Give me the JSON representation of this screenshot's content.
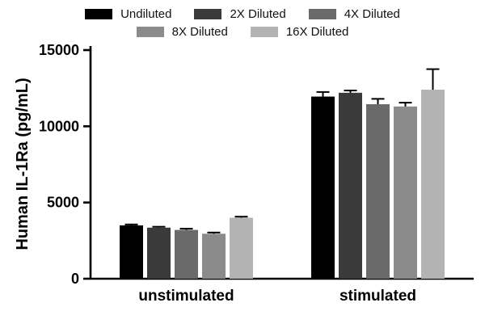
{
  "chart_data": {
    "type": "bar",
    "title": "",
    "ylabel": "Human IL-1Ra (pg/mL)",
    "xlabel": "",
    "ylim": [
      0,
      15000
    ],
    "yticks": [
      0,
      5000,
      10000,
      15000
    ],
    "categories": [
      "unstimulated",
      "stimulated"
    ],
    "series": [
      {
        "name": "Undiluted",
        "color": "#000000",
        "values": [
          3500,
          11950
        ],
        "errors": [
          60,
          300
        ]
      },
      {
        "name": "2X Diluted",
        "color": "#3a3a3a",
        "values": [
          3350,
          12200
        ],
        "errors": [
          60,
          150
        ]
      },
      {
        "name": "4X Diluted",
        "color": "#6a6a6a",
        "values": [
          3200,
          11450
        ],
        "errors": [
          80,
          350
        ]
      },
      {
        "name": "8X Diluted",
        "color": "#8b8b8b",
        "values": [
          2950,
          11300
        ],
        "errors": [
          80,
          250
        ]
      },
      {
        "name": "16X Diluted",
        "color": "#b3b3b3",
        "values": [
          4000,
          12400
        ],
        "errors": [
          70,
          1350
        ]
      }
    ],
    "legend_rows": [
      3,
      2
    ],
    "legend_position": "top",
    "grid": false,
    "axis_color": "#000000",
    "background_color": "#ffffff"
  }
}
